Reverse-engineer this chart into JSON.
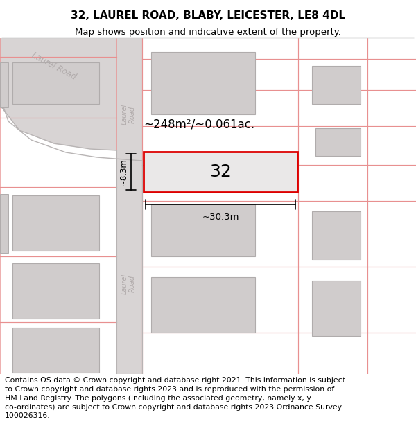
{
  "title_line1": "32, LAUREL ROAD, BLABY, LEICESTER, LE8 4DL",
  "title_line2": "Map shows position and indicative extent of the property.",
  "footer_text": "Contains OS data © Crown copyright and database right 2021. This information is subject\nto Crown copyright and database rights 2023 and is reproduced with the permission of\nHM Land Registry. The polygons (including the associated geometry, namely x, y\nco-ordinates) are subject to Crown copyright and database rights 2023 Ordnance Survey\n100026316.",
  "property_number": "32",
  "area_label": "~248m²/~0.061ac.",
  "width_label": "~30.3m",
  "height_label": "~8.3m",
  "map_bg": "#ffffff",
  "road_fill": "#d8d4d4",
  "road_outline": "#b8b4b4",
  "building_fill": "#d0cccc",
  "building_edge": "#b0acac",
  "plot_fill": "#eae8e8",
  "plot_edge": "#dd0000",
  "boundary_line_color": "#e89090",
  "road_label_color": "#b0aaaa",
  "title_fontsize": 11,
  "subtitle_fontsize": 9.5,
  "footer_fontsize": 7.8,
  "number32_fontsize": 18,
  "area_fontsize": 12,
  "dim_fontsize": 9.5
}
